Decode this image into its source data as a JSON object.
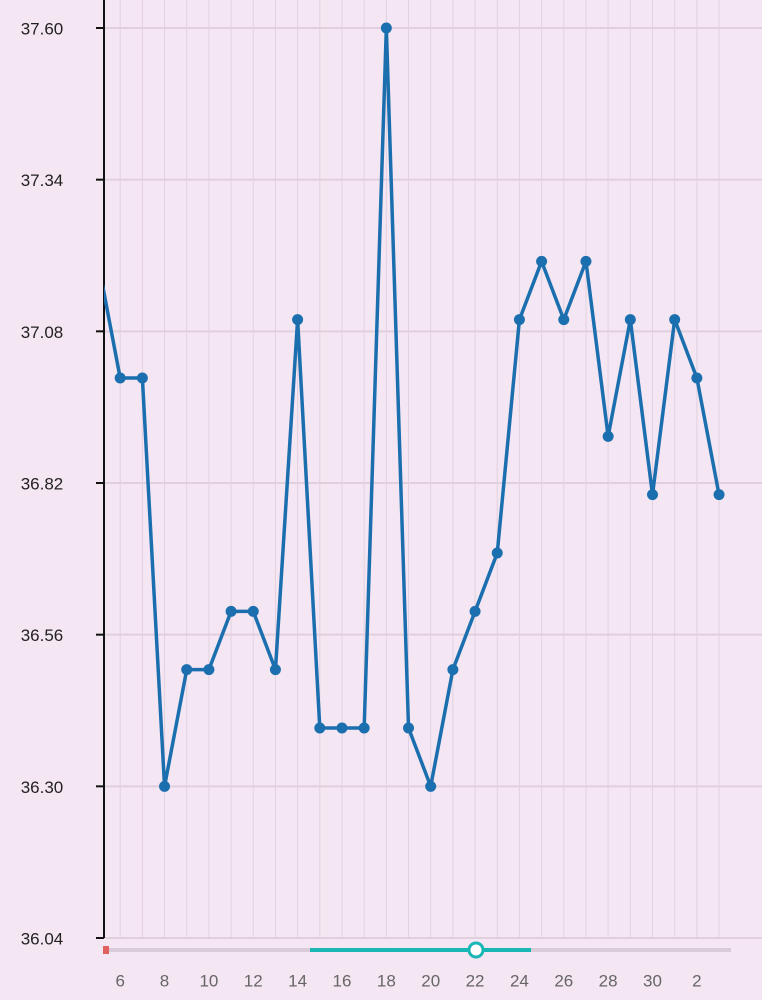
{
  "chart_data": {
    "type": "line",
    "categories": [
      null,
      "6",
      null,
      "8",
      null,
      "10",
      null,
      "12",
      null,
      "14",
      null,
      "16",
      null,
      "18",
      null,
      "20",
      null,
      "22",
      null,
      "24",
      null,
      "26",
      null,
      "28",
      null,
      "30",
      null,
      "2",
      null
    ],
    "series": [
      {
        "color": "#1b6fae",
        "values": [
          37.2,
          37.0,
          37.0,
          36.3,
          36.5,
          36.5,
          36.6,
          36.6,
          36.5,
          37.1,
          36.4,
          36.4,
          36.4,
          37.6,
          36.4,
          36.3,
          36.5,
          36.6,
          36.7,
          37.1,
          37.2,
          37.1,
          37.2,
          36.9,
          37.1,
          36.8,
          37.1,
          37.0,
          36.8
        ]
      }
    ],
    "ylim": [
      36.04,
      37.6
    ],
    "yticks": [
      36.04,
      {
        "value": 36.3,
        "label": "36.30"
      },
      36.56,
      36.82,
      37.08,
      37.34,
      {
        "value": 37.6,
        "label": "37.60"
      }
    ],
    "grid": true
  }
}
